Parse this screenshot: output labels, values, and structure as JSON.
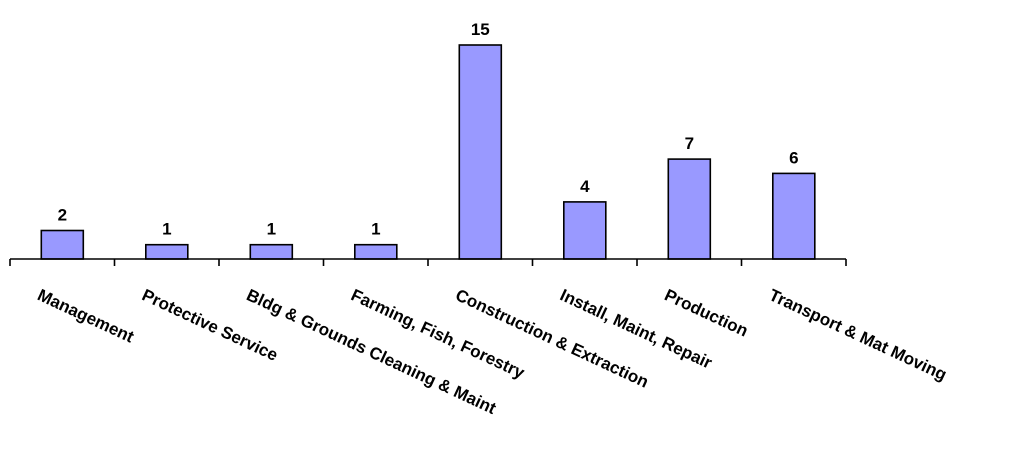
{
  "chart_data": {
    "type": "bar",
    "categories": [
      "Management",
      "Protective Service",
      "Bldg & Grounds Cleaning & Maint",
      "Farming, Fish, Forestry",
      "Construction & Extraction",
      "Install, Maint, Repair",
      "Production",
      "Transport & Mat Moving"
    ],
    "values": [
      2,
      1,
      1,
      1,
      15,
      4,
      7,
      6
    ],
    "data_labels": [
      "2",
      "1",
      "1",
      "1",
      "15",
      "4",
      "7",
      "6"
    ],
    "ylim": [
      0,
      15
    ],
    "grid": false,
    "legend": "none",
    "colors": {
      "bar_fill": "#9999ff",
      "bar_stroke": "#000000",
      "axis": "#000000",
      "background": "#ffffff"
    }
  }
}
